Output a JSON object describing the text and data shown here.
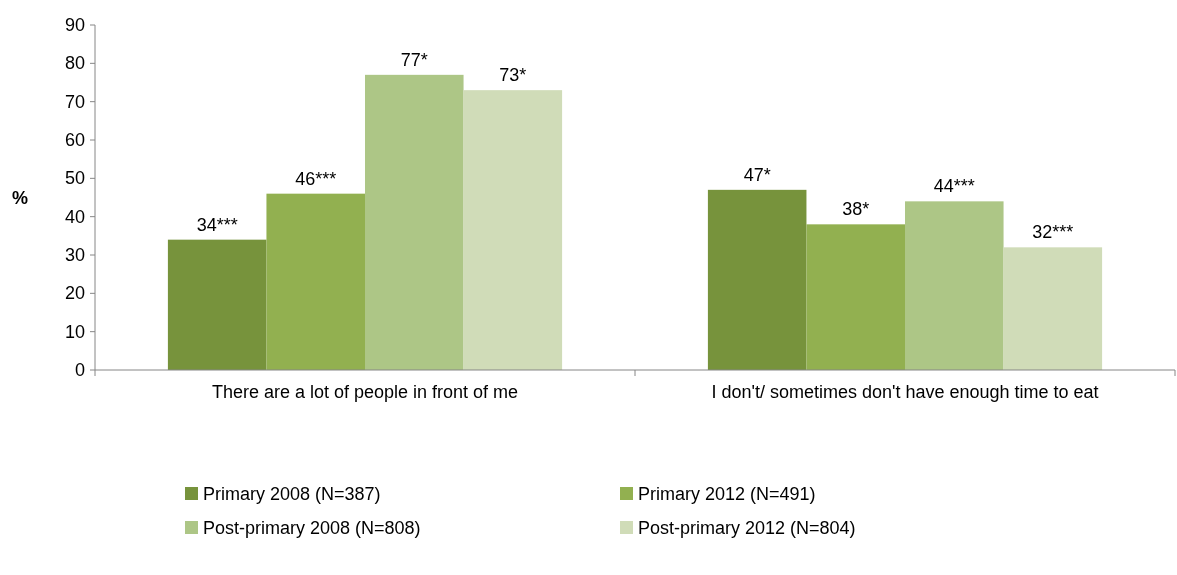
{
  "chart_data": {
    "type": "bar",
    "ylabel": "%",
    "categories": [
      "There are a lot of people in front of me",
      "I don't/ sometimes don't have enough time to eat"
    ],
    "series": [
      {
        "name": "Primary 2008 (N=387)",
        "color": "#77933c",
        "values": [
          34,
          47
        ],
        "value_labels": [
          "34***",
          "47*"
        ]
      },
      {
        "name": "Primary 2012 (N=491)",
        "color": "#92b050",
        "values": [
          46,
          38
        ],
        "value_labels": [
          "46***",
          "38*"
        ]
      },
      {
        "name": "Post-primary 2008 (N=808)",
        "color": "#adc686",
        "values": [
          77,
          44
        ],
        "value_labels": [
          "77*",
          "44***"
        ]
      },
      {
        "name": "Post-primary 2012 (N=804)",
        "color": "#d0dcb8",
        "values": [
          73,
          32
        ],
        "value_labels": [
          "73*",
          "32***"
        ]
      }
    ],
    "ylim": [
      0,
      90
    ],
    "yticks": [
      0,
      10,
      20,
      30,
      40,
      50,
      60,
      70,
      80,
      90
    ],
    "grid": false,
    "legend": "bottom"
  }
}
